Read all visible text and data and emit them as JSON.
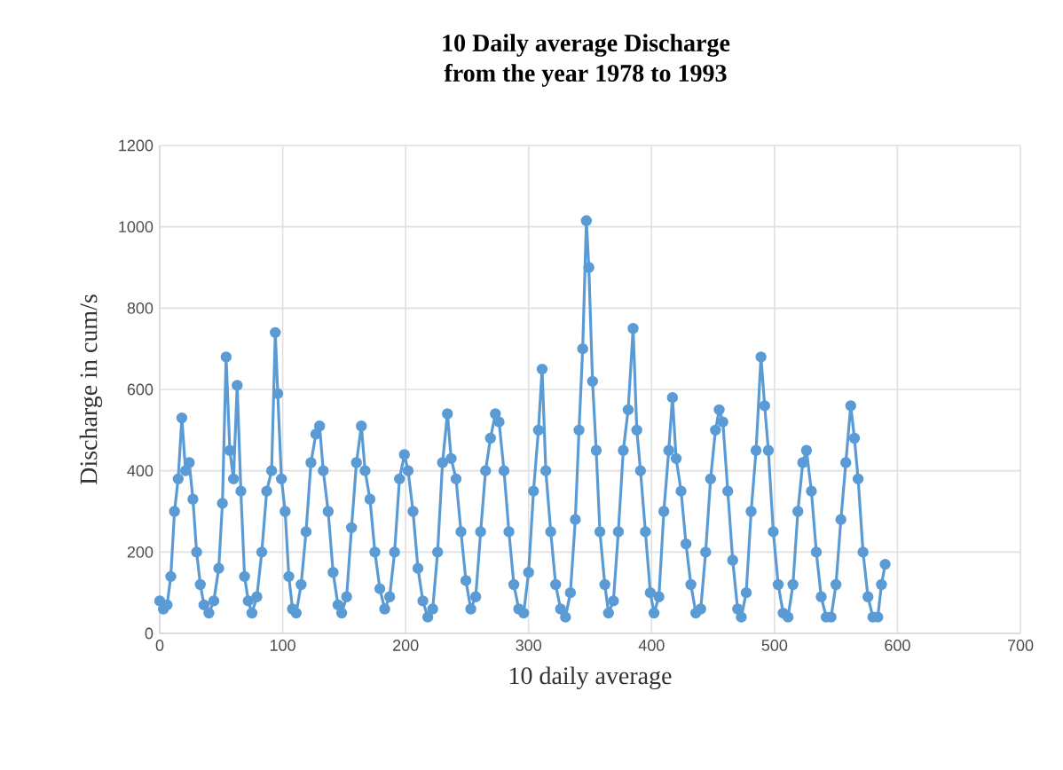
{
  "chart_data": {
    "type": "line",
    "title": "10 Daily average Discharge\nfrom the year 1978 to 1993",
    "xlabel": "10 daily average",
    "ylabel": "Discharge in cum/s",
    "xlim": [
      0,
      700
    ],
    "ylim": [
      0,
      1200
    ],
    "xticks": [
      0,
      100,
      200,
      300,
      400,
      500,
      600,
      700
    ],
    "yticks": [
      0,
      200,
      400,
      600,
      800,
      1000,
      1200
    ],
    "grid": true,
    "marker": "circle",
    "line_style": "solid",
    "series": [
      {
        "color": "#5b9bd5",
        "x": [
          0,
          3,
          6,
          9,
          12,
          15,
          18,
          21,
          24,
          27,
          30,
          33,
          36,
          40,
          44,
          48,
          51,
          54,
          57,
          60,
          63,
          66,
          69,
          72,
          75,
          79,
          83,
          87,
          91,
          94,
          96,
          99,
          102,
          105,
          108,
          111,
          115,
          119,
          123,
          127,
          130,
          133,
          137,
          141,
          145,
          148,
          152,
          156,
          160,
          164,
          167,
          171,
          175,
          179,
          183,
          187,
          191,
          195,
          199,
          202,
          206,
          210,
          214,
          218,
          222,
          226,
          230,
          234,
          237,
          241,
          245,
          249,
          253,
          257,
          261,
          265,
          269,
          273,
          276,
          280,
          284,
          288,
          292,
          296,
          300,
          304,
          308,
          311,
          314,
          318,
          322,
          326,
          330,
          334,
          338,
          341,
          344,
          347,
          349,
          352,
          355,
          358,
          362,
          365,
          369,
          373,
          377,
          381,
          385,
          388,
          391,
          395,
          399,
          402,
          406,
          410,
          414,
          417,
          420,
          424,
          428,
          432,
          436,
          440,
          444,
          448,
          452,
          455,
          458,
          462,
          466,
          470,
          473,
          477,
          481,
          485,
          489,
          492,
          495,
          499,
          503,
          507,
          511,
          515,
          519,
          523,
          526,
          530,
          534,
          538,
          542,
          546,
          550,
          554,
          558,
          562,
          565,
          568,
          572,
          576,
          580,
          584,
          587,
          590
        ],
        "values": [
          80,
          60,
          70,
          140,
          300,
          380,
          530,
          400,
          420,
          330,
          200,
          120,
          70,
          50,
          80,
          160,
          320,
          680,
          450,
          380,
          610,
          350,
          140,
          80,
          50,
          90,
          200,
          350,
          400,
          740,
          590,
          380,
          300,
          140,
          60,
          50,
          120,
          250,
          420,
          490,
          510,
          400,
          300,
          150,
          70,
          50,
          90,
          260,
          420,
          510,
          400,
          330,
          200,
          110,
          60,
          90,
          200,
          380,
          440,
          400,
          300,
          160,
          80,
          40,
          60,
          200,
          420,
          540,
          430,
          380,
          250,
          130,
          60,
          90,
          250,
          400,
          480,
          540,
          520,
          400,
          250,
          120,
          60,
          50,
          150,
          350,
          500,
          650,
          400,
          250,
          120,
          60,
          40,
          100,
          280,
          500,
          700,
          1015,
          900,
          620,
          450,
          250,
          120,
          50,
          80,
          250,
          450,
          550,
          750,
          500,
          400,
          250,
          100,
          50,
          90,
          300,
          450,
          580,
          430,
          350,
          220,
          120,
          50,
          60,
          200,
          380,
          500,
          550,
          520,
          350,
          180,
          60,
          40,
          100,
          300,
          450,
          680,
          560,
          450,
          250,
          120,
          50,
          40,
          120,
          300,
          420,
          450,
          350,
          200,
          90,
          40,
          40,
          120,
          280,
          420,
          560,
          480,
          380,
          200,
          90,
          40,
          40,
          120,
          170
        ]
      }
    ]
  }
}
